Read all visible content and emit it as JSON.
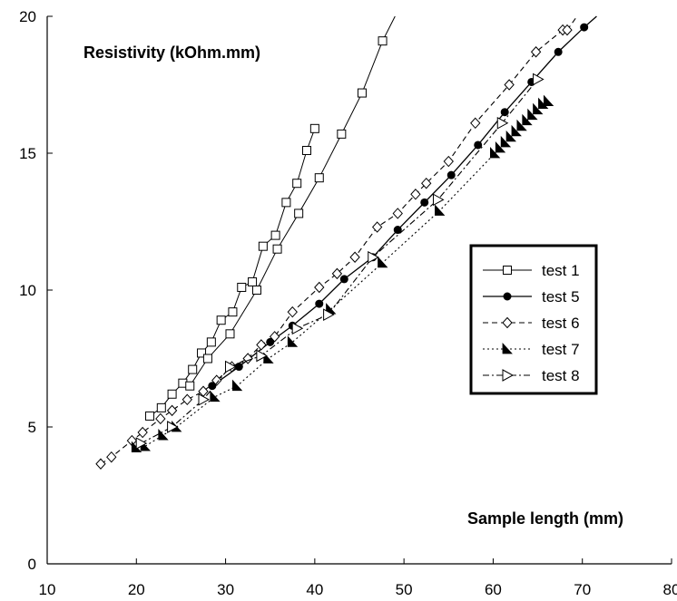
{
  "chart_data": {
    "type": "scatter",
    "ylabel": "Resistivity (kOhm.mm)",
    "xlabel": "Sample length (mm)",
    "xlim": [
      10,
      80
    ],
    "ylim": [
      0,
      20
    ],
    "xticks": [
      10,
      20,
      30,
      40,
      50,
      60,
      70,
      80
    ],
    "yticks": [
      0,
      5,
      10,
      15,
      20
    ],
    "grid": false,
    "legend_position": "right",
    "series": [
      {
        "name": "test 1",
        "marker": "open-square",
        "line": "solid-thin",
        "branches": [
          {
            "x": [
              21.5,
              22.8,
              24.0,
              25.2,
              26.3,
              27.3,
              28.4,
              29.5,
              30.8,
              31.8,
              33.0,
              34.2,
              35.6,
              36.8,
              38.0,
              39.1,
              40.0
            ],
            "y": [
              5.4,
              5.7,
              6.2,
              6.6,
              7.1,
              7.7,
              8.1,
              8.9,
              9.2,
              10.1,
              10.3,
              11.6,
              12.0,
              13.2,
              13.9,
              15.1,
              15.9
            ]
          },
          {
            "x": [
              26.0,
              28.0,
              30.5,
              33.5,
              35.8,
              38.2,
              40.5,
              43.0,
              45.3,
              47.6,
              49.0
            ],
            "y": [
              6.5,
              7.5,
              8.4,
              10.0,
              11.5,
              12.8,
              14.1,
              15.7,
              17.2,
              19.1,
              20.0
            ]
          }
        ]
      },
      {
        "name": "test 5",
        "marker": "filled-circle",
        "line": "solid",
        "x": [
          28.5,
          31.5,
          35.0,
          37.5,
          40.5,
          43.3,
          46.5,
          49.3,
          52.3,
          55.3,
          58.3,
          61.3,
          64.3,
          67.3,
          70.2,
          71.6
        ],
        "y": [
          6.5,
          7.2,
          8.1,
          8.7,
          9.5,
          10.4,
          11.2,
          12.2,
          13.2,
          14.2,
          15.3,
          16.5,
          17.6,
          18.7,
          19.6,
          20.0
        ]
      },
      {
        "name": "test 6",
        "marker": "open-diamond",
        "line": "dashed",
        "x": [
          16.0,
          17.2,
          19.5,
          20.7,
          22.7,
          24.0,
          25.7,
          27.5,
          29.0,
          30.7,
          32.5,
          34.0,
          35.5,
          37.5,
          40.5,
          42.5,
          44.5,
          47.0,
          49.3,
          51.3,
          52.5,
          55.0,
          58.0,
          61.8,
          64.8,
          67.8,
          68.3,
          69.4
        ],
        "y": [
          3.65,
          3.9,
          4.5,
          4.8,
          5.3,
          5.6,
          6.0,
          6.3,
          6.7,
          7.2,
          7.5,
          8.0,
          8.3,
          9.2,
          10.1,
          10.6,
          11.2,
          12.3,
          12.8,
          13.5,
          13.9,
          14.7,
          16.1,
          17.5,
          18.7,
          19.5,
          19.5,
          20.0
        ]
      },
      {
        "name": "test 7",
        "marker": "filled-triangle",
        "line": "dotted",
        "x": [
          20.0,
          21.0,
          23.0,
          24.5,
          28.8,
          31.3,
          34.8,
          37.5,
          41.8,
          47.6,
          54.0,
          60.2,
          60.8,
          61.4,
          62.0,
          62.6,
          63.2,
          63.8,
          64.4,
          65.0,
          65.6,
          66.2
        ],
        "y": [
          4.25,
          4.3,
          4.7,
          5.0,
          6.1,
          6.5,
          7.5,
          8.1,
          9.3,
          11.0,
          12.9,
          15.0,
          15.2,
          15.4,
          15.6,
          15.8,
          16.0,
          16.2,
          16.4,
          16.6,
          16.8,
          16.9
        ]
      },
      {
        "name": "test 8",
        "marker": "open-triangle-right",
        "line": "dashdot",
        "x": [
          20.5,
          24.0,
          27.5,
          30.5,
          34.0,
          38.0,
          41.5,
          46.5,
          53.8,
          61.0,
          65.0
        ],
        "y": [
          4.4,
          5.0,
          6.0,
          7.2,
          7.6,
          8.6,
          9.1,
          11.2,
          13.3,
          16.1,
          17.7
        ]
      }
    ]
  }
}
